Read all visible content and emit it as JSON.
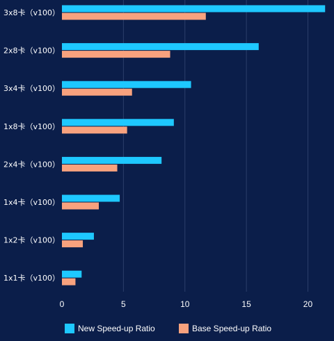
{
  "chart_data": {
    "type": "bar",
    "orientation": "horizontal",
    "categories": [
      "3x8卡（v100）",
      "2x8卡（v100）",
      "3x4卡（v100）",
      "1x8卡（v100）",
      "2x4卡（v100）",
      "1x4卡（v100）",
      "1x2卡（v100）",
      "1x1卡（v100）"
    ],
    "series": [
      {
        "name": "New Speed-up Ratio",
        "color": "#1ec8ff",
        "values": [
          21.4,
          16.0,
          10.5,
          9.1,
          8.1,
          4.7,
          2.6,
          1.6
        ]
      },
      {
        "name": "Base Speed-up Ratio",
        "color": "#f8a27e",
        "values": [
          11.7,
          8.8,
          5.7,
          5.3,
          4.5,
          3.0,
          1.7,
          1.1
        ]
      }
    ],
    "xlim": [
      0,
      21.5
    ],
    "xticks": [
      "0",
      "5",
      "10",
      "15",
      "20"
    ],
    "xtick_values": [
      0,
      5,
      10,
      15,
      20
    ],
    "grid": true,
    "legend_position": "bottom",
    "background": "#0b1e4a",
    "grid_color": "#2c3f6b",
    "text_color": "#ffffff"
  }
}
